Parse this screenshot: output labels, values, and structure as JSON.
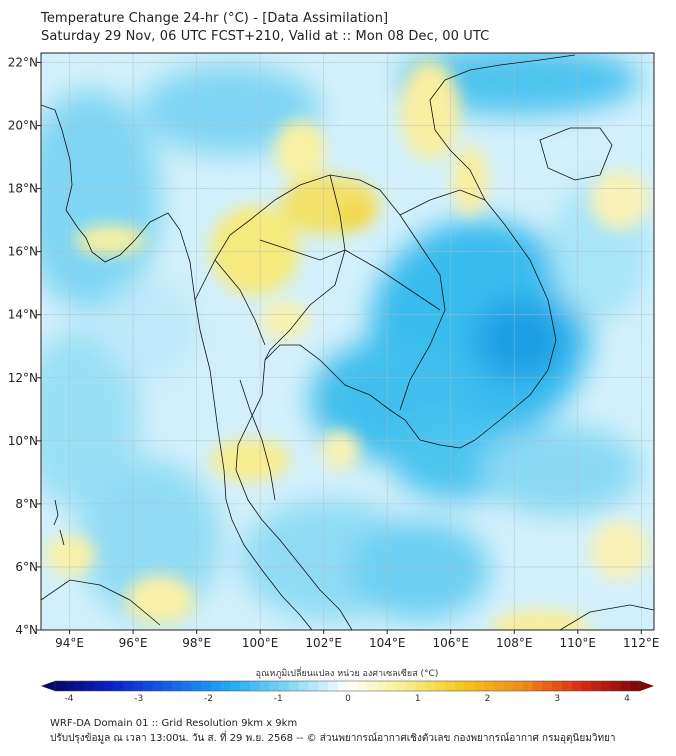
{
  "title": {
    "line1": "Temperature Change 24-hr (°C) - [Data Assimilation]",
    "line2": "Saturday 29 Nov, 06 UTC FCST+210, Valid at :: Mon 08 Dec, 00 UTC"
  },
  "map": {
    "lat_labels": [
      "22°N",
      "20°N",
      "18°N",
      "16°N",
      "14°N",
      "12°N",
      "10°N",
      "8°N",
      "6°N",
      "4°N"
    ],
    "lon_labels": [
      "94°E",
      "96°E",
      "98°E",
      "100°E",
      "102°E",
      "104°E",
      "106°E",
      "108°E",
      "110°E",
      "112°E"
    ],
    "lat_range": [
      4,
      22.3
    ],
    "lon_range": [
      93.1,
      112.4
    ]
  },
  "colorbar": {
    "title": "อุณหภูมิเปลี่ยนแปลง หน่วย องศาเซลเซียส (°C)",
    "ticks": [
      "-4",
      "-3",
      "-2",
      "-1",
      "0",
      "1",
      "2",
      "3",
      "4"
    ],
    "range": [
      -4,
      4
    ],
    "colors": [
      "#08086b",
      "#0a23c9",
      "#1565e6",
      "#22aaf2",
      "#7fd8f7",
      "#ffffff",
      "#f7ef8a",
      "#f5c518",
      "#f08a1c",
      "#d92a14",
      "#7a0606"
    ]
  },
  "footer": {
    "line1": "WRF-DA Domain 01 :: Grid Resolution 9km x 9km",
    "line2": "ปรับปรุงข้อมูล ณ เวลา 13:00น. วัน ส. ที่ 29 พ.ย. 2568 -- © ส่วนพยากรณ์อากาศเชิงตัวเลข กองพยากรณ์อากาศ กรมอุตุนิยมวิทยา"
  },
  "legend_icons": {
    "left_arrow": "colorbar-min-arrow-icon",
    "right_arrow": "colorbar-max-arrow-icon"
  }
}
